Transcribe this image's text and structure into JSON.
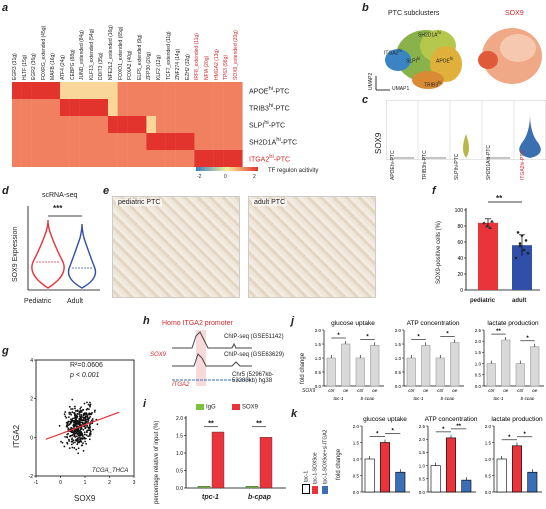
{
  "panels": {
    "a": "a",
    "b": "b",
    "c": "c",
    "d": "d",
    "e": "e",
    "f": "f",
    "g": "g",
    "h": "h",
    "i": "i",
    "j": "j",
    "k": "k"
  },
  "heatmap": {
    "genes_black": [
      "EGR3 (31g)",
      "HLTF (15g)",
      "EGR2 (36g)",
      "FOXRG_extended (45g)",
      "MAFB (16g)",
      "ATF4 (24g)",
      "CEBPG (88g)",
      "JUND_extended (84g)",
      "KLF13_extended (54g)",
      "DDIT3 (35g)",
      "NFE2L2_extended (16g)",
      "FOXO1_extended (65g)",
      "FOXA2 (40g)",
      "ELF5_extended (9g)",
      "ZFP30 (20g)",
      "KLF2 (12g)",
      "TCF7_extended (11g)",
      "ZNF274 (14g)",
      "EZH2 (32g)"
    ],
    "genes_red": [
      "IRF8_extended (11g)",
      "NFIA (20g)",
      "HMGA2 (13g)",
      "TP63 (98g)",
      "SOX9_extended (20g)"
    ],
    "rows": [
      {
        "label": "APOE",
        "sup": "hi",
        "suffix": "-PTC",
        "red": false
      },
      {
        "label": "TRIB3",
        "sup": "hi",
        "suffix": "-PTC",
        "red": false
      },
      {
        "label": "SLPI",
        "sup": "hi",
        "suffix": "-PTC",
        "red": false
      },
      {
        "label": "SH2D1A",
        "sup": "hi",
        "suffix": "-PTC",
        "red": false
      },
      {
        "label": "ITGA2",
        "sup": "hi",
        "suffix": "-PTC",
        "red": true
      }
    ],
    "matrix": [
      [
        2,
        2,
        2,
        2,
        2,
        0,
        0,
        0,
        0,
        0,
        0,
        -1,
        -1,
        -1,
        -1,
        -1,
        -1,
        -1,
        -1,
        -1,
        -1,
        -1,
        -1,
        -1
      ],
      [
        -1,
        -1,
        -1,
        -1,
        -1,
        2,
        2,
        2,
        2,
        2,
        0,
        -1,
        -1,
        -1,
        -1,
        -1,
        -1,
        -1,
        -1,
        -1,
        -1,
        -1,
        -1,
        -1
      ],
      [
        -1,
        -1,
        -1,
        -1,
        -1,
        -1,
        -1,
        -1,
        -1,
        -1,
        2,
        2,
        2,
        2,
        0,
        -1,
        -1,
        -1,
        -1,
        -1,
        -1,
        -1,
        -1,
        -1
      ],
      [
        -1,
        -1,
        -1,
        -1,
        -1,
        -1,
        -1,
        -1,
        -1,
        -1,
        -1,
        -1,
        -1,
        -1,
        2,
        2,
        2,
        2,
        2,
        -1,
        -1,
        -1,
        -1,
        -1
      ],
      [
        -1,
        -1,
        -1,
        -1,
        -1,
        -1,
        -1,
        -1,
        -1,
        -1,
        -1,
        -1,
        -1,
        -1,
        -1,
        -1,
        -1,
        -1,
        -1,
        2,
        2,
        2,
        2,
        2
      ]
    ],
    "legend_ticks": [
      "-2",
      "0",
      "2"
    ],
    "legend_title": "TF regulon acitivity"
  },
  "umap": {
    "title": "PTC subclusters",
    "sox9_title": "SOX9",
    "cluster_labels": [
      {
        "name": "SH2D1A",
        "sup": "hi"
      },
      {
        "name": "ITGA2",
        "sup": "hi"
      },
      {
        "name": "SLPI",
        "sup": "hi"
      },
      {
        "name": "APOE",
        "sup": "hi"
      },
      {
        "name": "TRIB3",
        "sup": "hi"
      }
    ],
    "axis1": "UMAP1",
    "axis2": "UMAP2"
  },
  "violin_c": {
    "ylabel": "SOX9",
    "groups": [
      "APOEhi-PTC",
      "TRIB3hi-PTC",
      "SLPIhi-PTC",
      "SH2D1Ahi-PTC",
      "ITGA2hi-PTC"
    ]
  },
  "chart_data": [
    {
      "type": "violin",
      "title": "scRNA-seq",
      "ylabel": "SOX9 Expression",
      "categories": [
        "Pediatric",
        "Adult"
      ],
      "colors": [
        "#e8343a",
        "#2f4fa8"
      ],
      "significance": "***"
    },
    {
      "type": "bar",
      "categories": [
        "pediatric",
        "adult"
      ],
      "values": [
        84,
        56
      ],
      "errors": [
        5,
        13
      ],
      "ylabel": "SOX9-positive cells (%)",
      "ylim": [
        0,
        100
      ],
      "yticks": [
        "0",
        "20",
        "40",
        "60",
        "80",
        "100"
      ],
      "colors": [
        "#e8343a",
        "#2f4fa8"
      ],
      "significance": "**"
    },
    {
      "type": "scatter",
      "xlabel": "SOX9",
      "ylabel": "ITGA2",
      "xlim": [
        -1,
        3
      ],
      "ylim": [
        -2,
        4
      ],
      "xticks": [
        "-1",
        "0",
        "1",
        "2",
        "3"
      ],
      "yticks": [
        "-2",
        "0",
        "2",
        "4"
      ],
      "r2": "R²=0.0606",
      "p": "p < 0.001",
      "dataset": "TCGA_THCA"
    },
    {
      "type": "bar",
      "categories": [
        "tpc-1",
        "b-cpap"
      ],
      "series": [
        {
          "name": "IgG",
          "values": [
            0.05,
            0.05
          ],
          "color": "#7cc242"
        },
        {
          "name": "SOX9",
          "values": [
            1.6,
            1.45
          ],
          "color": "#e8343a"
        }
      ],
      "ylabel": "percentage relative of input (%)",
      "ylim": [
        0,
        2
      ],
      "yticks": [
        "0.0",
        "0.5",
        "1.0",
        "1.5",
        "2.0"
      ],
      "significance": [
        "**",
        "**"
      ]
    }
  ],
  "microscopy": {
    "pediatric": "pediatric PTC",
    "adult": "adult PTC"
  },
  "chip": {
    "title": "Homo ITGA2 promoter",
    "track1": "ChIP-seq (GSE51142)",
    "track2": "ChIP-seq (GSE63629)",
    "region": "Chr5 (52967kb-53283kb) hg38",
    "sox9": "SOX9",
    "gene": "ITGA2"
  },
  "panel_j": {
    "ylabel": "fold change",
    "subplots": [
      {
        "title": "glucose uptake",
        "values": [
          1.0,
          1.5,
          1.0,
          1.45
        ],
        "yticks": [
          "0.0",
          "0.5",
          "1.0",
          "1.5",
          "2.0"
        ]
      },
      {
        "title": "ATP concentration",
        "values": [
          1.0,
          1.45,
          1.0,
          1.55
        ],
        "yticks": [
          "0.0",
          "0.5",
          "1.0",
          "1.5",
          "2.0"
        ]
      },
      {
        "title": "lactate production",
        "values": [
          1.0,
          2.05,
          1.0,
          1.75
        ],
        "yticks": [
          "0.0",
          "0.5",
          "1.0",
          "1.5",
          "2.0",
          "2.5"
        ]
      }
    ],
    "xlabels": [
      "ctrl",
      "oe",
      "ctrl",
      "oe"
    ],
    "cells": [
      "tpc-1",
      "b-cpap"
    ],
    "row_label": "SOX9",
    "sig": [
      "*",
      "*"
    ],
    "sig3": [
      "**",
      "*"
    ]
  },
  "panel_k": {
    "ylabel": "fold change",
    "legend": [
      "tpc-1",
      "tpc-1-SOX9oe",
      "tpc-1-SOX9oe+si-ITGA2"
    ],
    "subplots": [
      {
        "title": "glucose uptake",
        "values": [
          1.0,
          1.5,
          0.6
        ],
        "yticks": [
          "0.0",
          "0.5",
          "1.0",
          "1.5",
          "2.0"
        ]
      },
      {
        "title": "ATP concentration",
        "values": [
          1.0,
          2.05,
          0.45
        ],
        "yticks": [
          "0.0",
          "0.5",
          "1.0",
          "1.5",
          "2.0",
          "2.5"
        ]
      },
      {
        "title": "lactate production",
        "values": [
          1.0,
          1.4,
          0.6
        ],
        "yticks": [
          "0.0",
          "0.5",
          "1.0",
          "1.5",
          "2.0"
        ]
      }
    ],
    "colors": [
      "#ffffff",
      "#e8343a",
      "#3a6fb8"
    ],
    "sig": [
      "*",
      "*"
    ],
    "sig_atp": [
      "*",
      "**"
    ]
  }
}
